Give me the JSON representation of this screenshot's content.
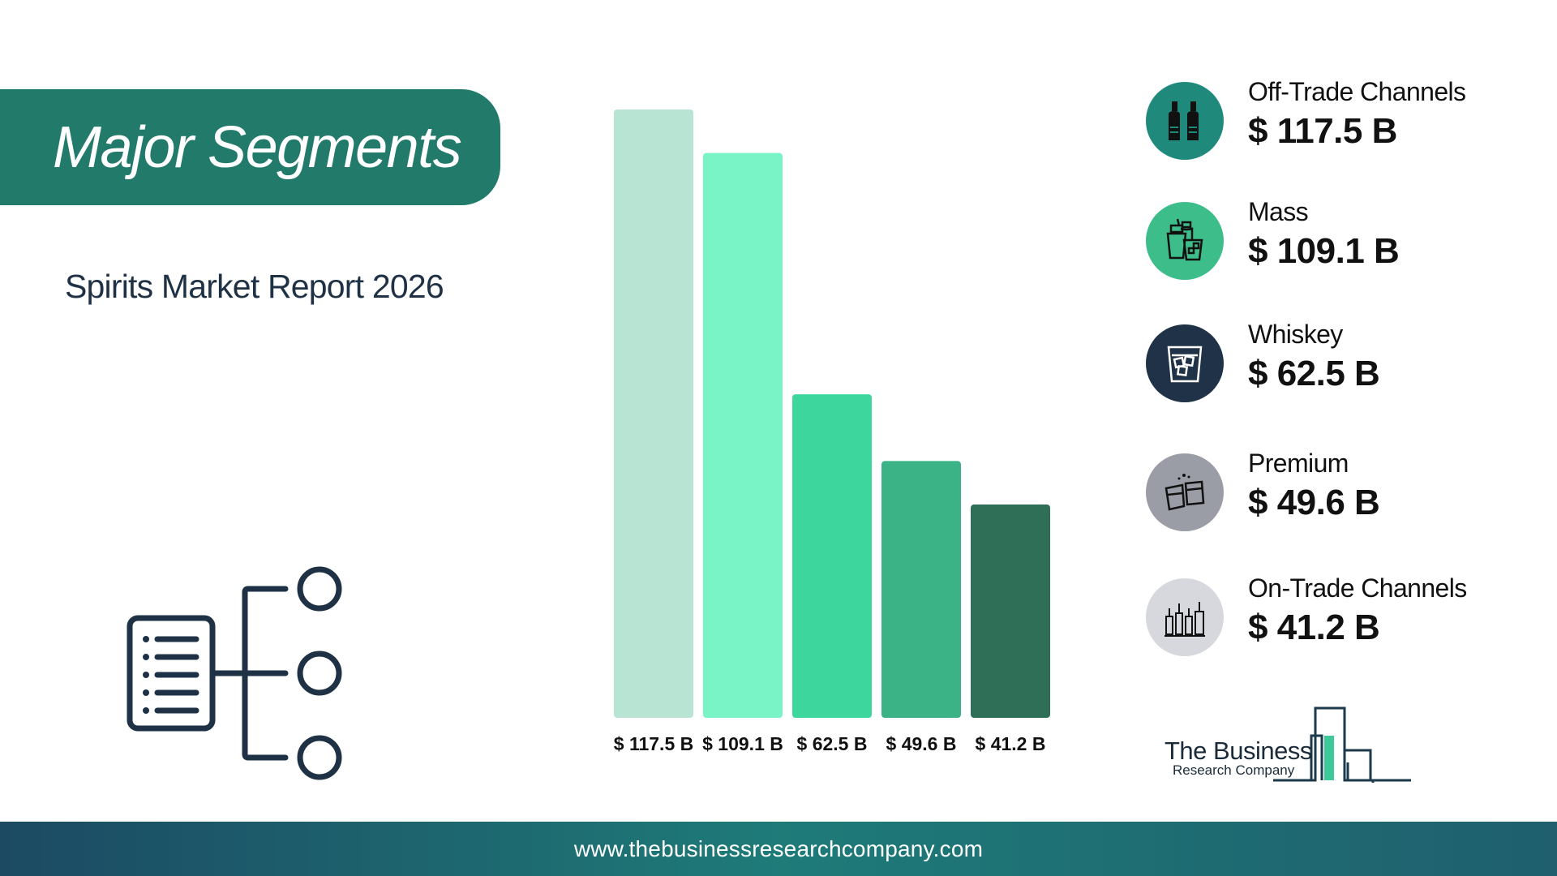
{
  "header": {
    "title": "Major Segments",
    "subtitle": "Spirits Market Report 2026"
  },
  "chart_data": {
    "type": "bar",
    "categories": [
      "Off-Trade Channels",
      "Mass",
      "Whiskey",
      "Premium",
      "On-Trade Channels"
    ],
    "values": [
      117.5,
      109.1,
      62.5,
      49.6,
      41.2
    ],
    "value_labels": [
      "$ 117.5 B",
      "$ 109.1 B",
      "$ 62.5 B",
      "$ 49.6 B",
      "$ 41.2 B"
    ],
    "colors": [
      "#b8e4d4",
      "#79f4c6",
      "#3dd79e",
      "#3bb387",
      "#2f6f58"
    ],
    "ylim": [
      0,
      117.5
    ],
    "title": "",
    "xlabel": "",
    "ylabel": "",
    "grid": false
  },
  "legend": {
    "items": [
      {
        "name": "Off-Trade Channels",
        "value": "$ 117.5 B",
        "icon": "bottles-icon",
        "circle_color": "#1f8a7c"
      },
      {
        "name": "Mass",
        "value": "$ 109.1 B",
        "icon": "drinks-icon",
        "circle_color": "#3dbd8a"
      },
      {
        "name": "Whiskey",
        "value": "$ 62.5 B",
        "icon": "whiskey-glass-icon",
        "circle_color": "#1f3247"
      },
      {
        "name": "Premium",
        "value": "$ 49.6 B",
        "icon": "toast-glasses-icon",
        "circle_color": "#9a9ca6"
      },
      {
        "name": "On-Trade Channels",
        "value": "$ 41.2 B",
        "icon": "bar-bottles-icon",
        "circle_color": "#d6d8de"
      }
    ]
  },
  "logo": {
    "name": "The Business",
    "sub": "Research Company"
  },
  "footer": {
    "url": "www.thebusinessresearchcompany.com"
  }
}
